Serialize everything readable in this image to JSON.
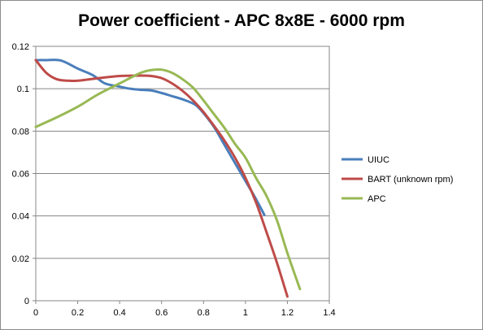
{
  "chart_data": {
    "type": "line",
    "title": "Power coefficient - APC 8x8E - 6000 rpm",
    "xlabel": "",
    "ylabel": "",
    "xlim": [
      0,
      1.4
    ],
    "ylim": [
      0,
      0.12
    ],
    "x_ticks": [
      "0",
      "0.2",
      "0.4",
      "0.6",
      "0.8",
      "1",
      "1.2",
      "1.4"
    ],
    "y_ticks": [
      "0",
      "0.02",
      "0.04",
      "0.06",
      "0.08",
      "0.1",
      "0.12"
    ],
    "grid": "horizontal",
    "legend_position": "right",
    "series": [
      {
        "name": "UIUC",
        "color": "#4a7ebb",
        "x": [
          0,
          0.05,
          0.12,
          0.2,
          0.27,
          0.33,
          0.4,
          0.45,
          0.5,
          0.55,
          0.6,
          0.65,
          0.7,
          0.76,
          0.8,
          0.85,
          0.9,
          0.95,
          1.0,
          1.05,
          1.09
        ],
        "y": [
          0.1135,
          0.1135,
          0.1133,
          0.1095,
          0.1065,
          0.1025,
          0.101,
          0.1,
          0.0995,
          0.0992,
          0.098,
          0.0965,
          0.095,
          0.0925,
          0.0885,
          0.082,
          0.0735,
          0.065,
          0.0565,
          0.048,
          0.0405
        ]
      },
      {
        "name": "BART (unknown rpm)",
        "color": "#be4b48",
        "x": [
          0,
          0.05,
          0.1,
          0.15,
          0.2,
          0.3,
          0.4,
          0.5,
          0.55,
          0.6,
          0.65,
          0.7,
          0.75,
          0.8,
          0.85,
          0.9,
          0.95,
          1.0,
          1.05,
          1.1,
          1.15,
          1.2
        ],
        "y": [
          0.1135,
          0.1075,
          0.1045,
          0.1038,
          0.1038,
          0.105,
          0.106,
          0.1062,
          0.106,
          0.105,
          0.1025,
          0.099,
          0.0945,
          0.089,
          0.0825,
          0.0755,
          0.0675,
          0.058,
          0.0465,
          0.0325,
          0.018,
          0.002
        ]
      },
      {
        "name": "APC",
        "color": "#98b954",
        "x": [
          0,
          0.1,
          0.2,
          0.3,
          0.4,
          0.5,
          0.55,
          0.6,
          0.65,
          0.7,
          0.75,
          0.8,
          0.85,
          0.9,
          0.95,
          1.0,
          1.05,
          1.1,
          1.15,
          1.2,
          1.26
        ],
        "y": [
          0.082,
          0.0865,
          0.0915,
          0.0975,
          0.1025,
          0.1075,
          0.1088,
          0.109,
          0.1075,
          0.1045,
          0.1005,
          0.0945,
          0.088,
          0.0815,
          0.074,
          0.0675,
          0.058,
          0.0495,
          0.038,
          0.0225,
          0.0055
        ]
      }
    ]
  }
}
